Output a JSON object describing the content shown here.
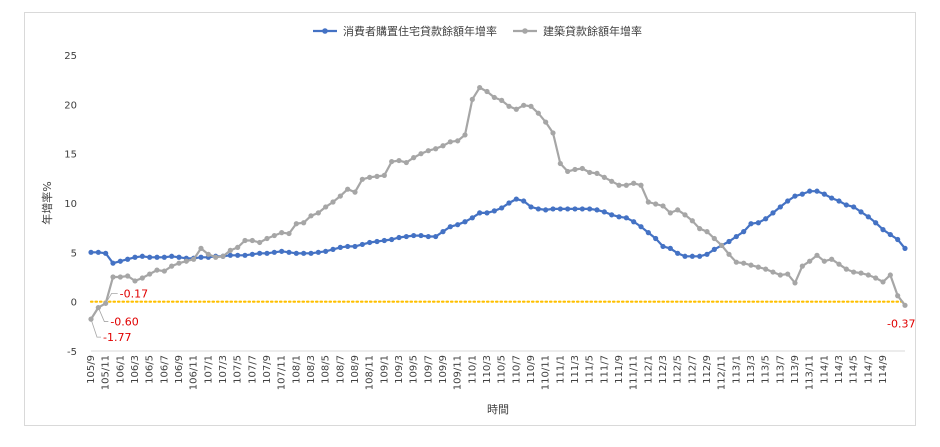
{
  "chart_data": {
    "type": "line",
    "title": "",
    "xlabel": "時間",
    "ylabel": "年增率%",
    "ylim": [
      -5,
      25
    ],
    "y_ticks": [
      -5,
      0,
      5,
      10,
      15,
      20,
      25
    ],
    "grid": false,
    "legend_position": "top",
    "x_tick_labels": [
      "105/9",
      "105/11",
      "106/1",
      "106/3",
      "106/5",
      "106/7",
      "106/9",
      "106/11",
      "107/1",
      "107/3",
      "107/5",
      "107/7",
      "107/9",
      "107/11",
      "108/1",
      "108/3",
      "108/5",
      "108/7",
      "108/9",
      "108/11",
      "109/1",
      "109/3",
      "109/5",
      "109/7",
      "109/9",
      "109/11",
      "110/1",
      "110/3",
      "110/5",
      "110/7",
      "110/9",
      "110/11",
      "111/1",
      "111/3",
      "111/5",
      "111/7",
      "111/9",
      "111/11",
      "112/1",
      "112/3",
      "112/5",
      "112/7",
      "112/9",
      "112/11",
      "113/1",
      "113/3",
      "113/5",
      "113/7",
      "113/9",
      "113/11",
      "114/1",
      "114/3",
      "114/5",
      "114/7",
      "114/9"
    ],
    "zero_line_color": "#ffc000",
    "series": [
      {
        "name": "消費者購置住宅貸款餘額年增率",
        "color": "#4472c4",
        "values": [
          5.0,
          5.0,
          4.9,
          3.9,
          4.1,
          4.3,
          4.5,
          4.6,
          4.5,
          4.5,
          4.5,
          4.6,
          4.5,
          4.4,
          4.4,
          4.5,
          4.5,
          4.6,
          4.6,
          4.7,
          4.7,
          4.7,
          4.8,
          4.9,
          4.9,
          5.0,
          5.1,
          5.0,
          4.9,
          4.9,
          4.9,
          5.0,
          5.1,
          5.3,
          5.5,
          5.6,
          5.6,
          5.8,
          6.0,
          6.1,
          6.2,
          6.3,
          6.5,
          6.6,
          6.7,
          6.7,
          6.6,
          6.6,
          7.1,
          7.6,
          7.8,
          8.1,
          8.5,
          9.0,
          9.0,
          9.2,
          9.5,
          10.0,
          10.4,
          10.2,
          9.6,
          9.4,
          9.3,
          9.4,
          9.4,
          9.4,
          9.4,
          9.4,
          9.4,
          9.3,
          9.1,
          8.8,
          8.6,
          8.5,
          8.1,
          7.6,
          7.0,
          6.4,
          5.6,
          5.4,
          4.9,
          4.6,
          4.6,
          4.6,
          4.8,
          5.3,
          5.7,
          6.1,
          6.6,
          7.1,
          7.9,
          8.0,
          8.4,
          9.0,
          9.6,
          10.2,
          10.7,
          10.9,
          11.2,
          11.2,
          10.9,
          10.5,
          10.2,
          9.8,
          9.6,
          9.1,
          8.6,
          8.0,
          7.3,
          6.8,
          6.3,
          5.4
        ]
      },
      {
        "name": "建築貸款餘額年增率",
        "color": "#a6a6a6",
        "values": [
          -1.77,
          -0.6,
          -0.17,
          2.5,
          2.5,
          2.6,
          2.1,
          2.4,
          2.8,
          3.2,
          3.1,
          3.6,
          3.9,
          4.1,
          4.3,
          5.4,
          4.8,
          4.5,
          4.6,
          5.2,
          5.5,
          6.2,
          6.2,
          6.0,
          6.4,
          6.7,
          7.0,
          6.9,
          7.9,
          8.0,
          8.7,
          9.0,
          9.6,
          10.1,
          10.7,
          11.4,
          11.1,
          12.4,
          12.6,
          12.7,
          12.8,
          14.2,
          14.3,
          14.1,
          14.6,
          15.0,
          15.3,
          15.5,
          15.8,
          16.2,
          16.3,
          16.9,
          20.5,
          21.7,
          21.3,
          20.7,
          20.4,
          19.8,
          19.5,
          19.9,
          19.8,
          19.1,
          18.2,
          17.1,
          14.0,
          13.2,
          13.4,
          13.5,
          13.1,
          13.0,
          12.6,
          12.2,
          11.8,
          11.8,
          12.0,
          11.8,
          10.1,
          9.9,
          9.7,
          9.0,
          9.3,
          8.8,
          8.2,
          7.4,
          7.1,
          6.4,
          5.7,
          4.8,
          4.0,
          3.9,
          3.7,
          3.5,
          3.3,
          3.0,
          2.7,
          2.8,
          1.9,
          3.6,
          4.1,
          4.7,
          4.1,
          4.3,
          3.8,
          3.3,
          3.0,
          2.9,
          2.7,
          2.4,
          2.0,
          2.7,
          0.6,
          -0.37
        ]
      }
    ],
    "annotations": [
      "-0.17",
      "-0.60",
      "-1.77",
      "-0.37"
    ]
  }
}
